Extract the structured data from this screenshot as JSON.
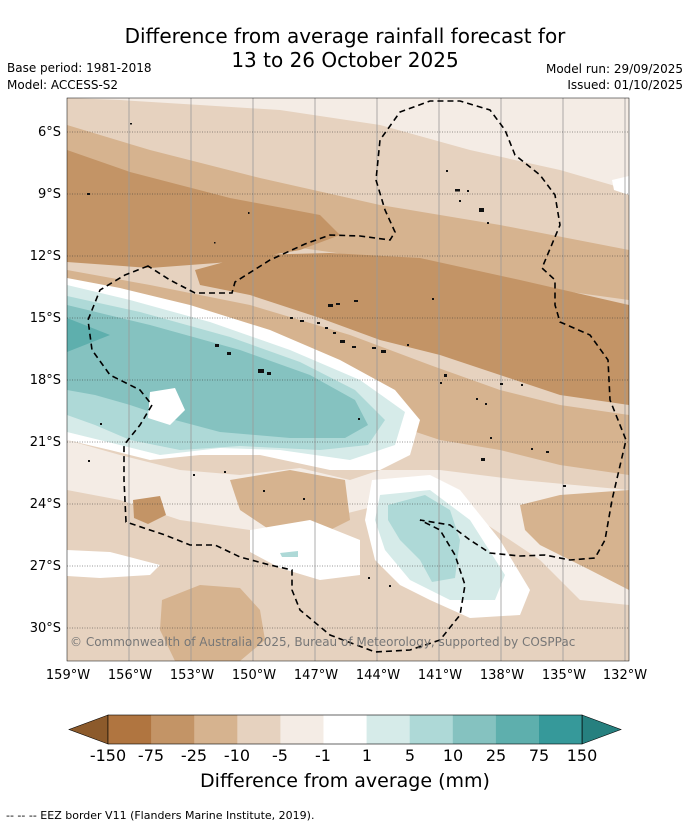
{
  "header": {
    "title_line1": "Difference from average rainfall forecast for",
    "title_line2": "13 to 26 October 2025",
    "base_period": "Base period: 1981-2018",
    "model": "Model: ACCESS-S2",
    "model_run": "Model run: 29/09/2025",
    "issued": "Issued: 01/10/2025"
  },
  "map": {
    "lat_labels": [
      "6°S",
      "9°S",
      "12°S",
      "15°S",
      "18°S",
      "21°S",
      "24°S",
      "27°S",
      "30°S"
    ],
    "lon_labels": [
      "159°W",
      "156°W",
      "153°W",
      "150°W",
      "147°W",
      "144°W",
      "141°W",
      "138°W",
      "135°W",
      "132°W"
    ],
    "copyright": "© Commonwealth of Australia 2025, Bureau of Meteorology, supported by COSPPac"
  },
  "legend": {
    "tick_labels": [
      "-150",
      "-75",
      "-25",
      "-10",
      "-5",
      "-1",
      "1",
      "5",
      "10",
      "25",
      "75",
      "150"
    ],
    "colors": [
      "#8c5a2b",
      "#b07540",
      "#c39466",
      "#d6b38f",
      "#e6d2bf",
      "#f4ece5",
      "#ffffff",
      "#d6ebe9",
      "#aed9d7",
      "#85c2c0",
      "#5eafad",
      "#36999a",
      "#26807f"
    ],
    "label": "Difference from average (mm)"
  },
  "footnote": "--  --  -- EEZ border V11 (Flanders Marine Institute, 2019)."
}
